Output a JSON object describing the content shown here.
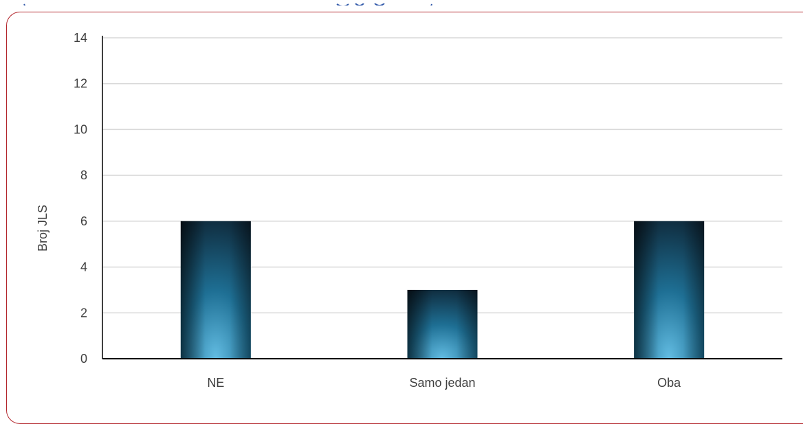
{
  "colors": {
    "frame_border": "#b3262c",
    "bar_dark": "#0d2130",
    "bar_mid": "#1e6f94",
    "bar_light": "#63bde3",
    "gridline": "#d9d9d9",
    "axis": "#000000",
    "text": "#404040",
    "top_strip_text": "#2f57a8"
  },
  "chart_data": {
    "type": "bar",
    "categories": [
      "NE",
      "Samo jedan",
      "Oba"
    ],
    "values": [
      6,
      3,
      6
    ],
    "title": "",
    "xlabel": "",
    "ylabel": "Broj JLS",
    "ylim": [
      0,
      14
    ],
    "yticks": [
      0,
      2,
      4,
      6,
      8,
      10,
      12,
      14
    ],
    "grid": true,
    "legend": "none"
  }
}
